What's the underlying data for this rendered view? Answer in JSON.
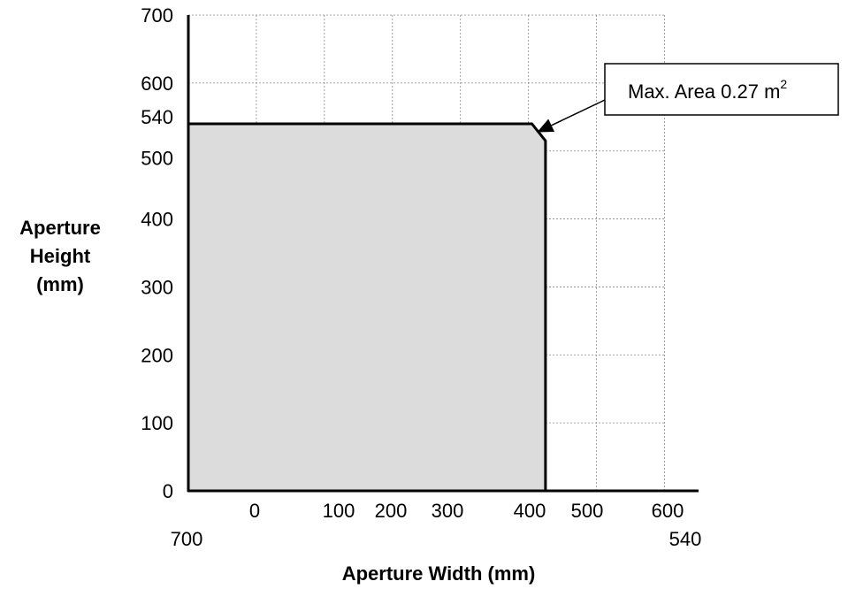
{
  "chart_data": {
    "type": "area",
    "xlabel": "Aperture Width (mm)",
    "ylabel": [
      "Aperture",
      "Height",
      "(mm)"
    ],
    "x_ticks": [
      {
        "label": "0",
        "value": 0
      },
      {
        "label": "100",
        "value": 100
      },
      {
        "label": "200",
        "value": 200
      },
      {
        "label": "300",
        "value": 300
      },
      {
        "label": "400",
        "value": 400
      },
      {
        "label": "500",
        "value": 500
      },
      {
        "label": "600",
        "value": 600
      }
    ],
    "x_extra_labels": [
      {
        "label": "700",
        "value": -100
      },
      {
        "label": "540",
        "value": 600
      }
    ],
    "y_ticks": [
      {
        "label": "0",
        "value": 0
      },
      {
        "label": "100",
        "value": 100
      },
      {
        "label": "200",
        "value": 200
      },
      {
        "label": "300",
        "value": 300
      },
      {
        "label": "400",
        "value": 400
      },
      {
        "label": "500",
        "value": 500
      },
      {
        "label": "540",
        "value": 540
      },
      {
        "label": "600",
        "value": 600
      },
      {
        "label": "700",
        "value": 700
      }
    ],
    "xlim": [
      -100,
      650
    ],
    "ylim": [
      0,
      700
    ],
    "grid": true,
    "grid_x": [
      -100,
      0,
      100,
      200,
      300,
      400,
      500,
      600
    ],
    "grid_y": [
      100,
      200,
      300,
      400,
      500,
      600,
      700
    ],
    "region": {
      "fill": "#dcdcdc",
      "points": [
        [
          -100,
          0
        ],
        [
          -100,
          540
        ],
        [
          405,
          540
        ],
        [
          425,
          515
        ],
        [
          425,
          0
        ]
      ]
    },
    "annotation": {
      "text": "Max. Area 0.27 m",
      "superscript": "2",
      "arrow_target": [
        410,
        525
      ]
    }
  }
}
